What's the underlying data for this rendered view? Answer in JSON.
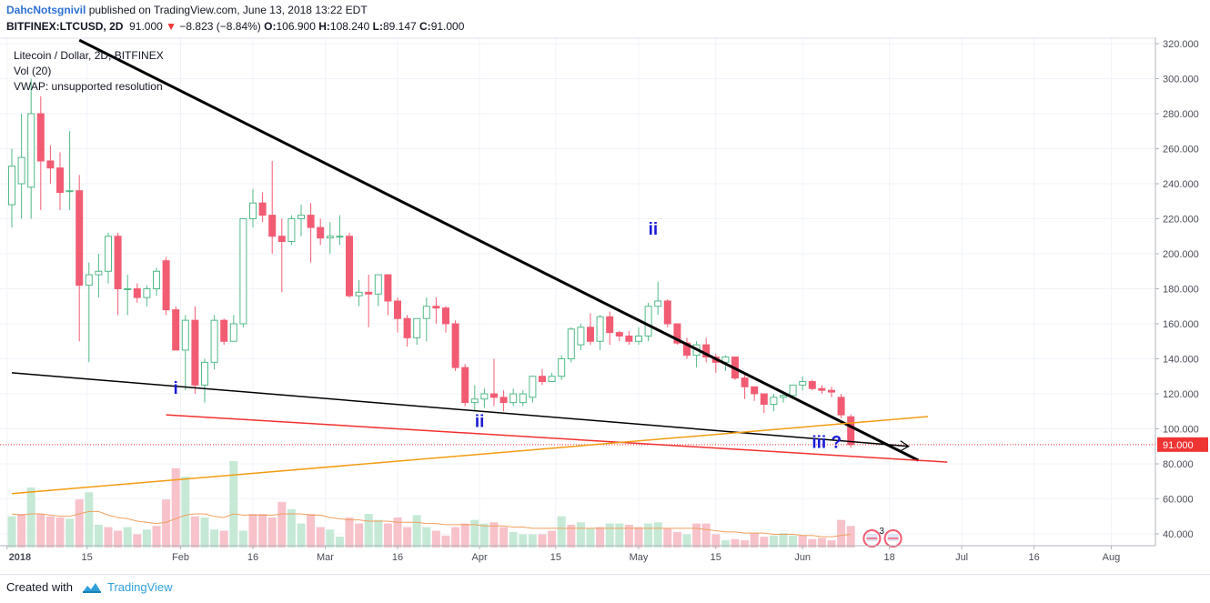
{
  "header": {
    "author": "DahcNotsgnivil",
    "published_text": " published on TradingView.com, June 13, 2018 13:22 EDT",
    "symbol": "BITFINEX:LTCUSD, 2D",
    "last": "91.000",
    "change": "−8.823 (−8.84%)",
    "open_label": "O:",
    "open": "106.900",
    "high_label": "H:",
    "high": "108.240",
    "low_label": "L:",
    "low": "89.147",
    "close_label": "C:",
    "close": "91.000"
  },
  "legend": {
    "title": "Litecoin / Dollar, 2D, BITFINEX",
    "vol": "Vol (20)",
    "vwap": "VWAP: unsupported resolution"
  },
  "footer": {
    "created_with": "Created with",
    "brand": "TradingView"
  },
  "colors": {
    "up": "#9fdfc5",
    "up_border": "#53b987",
    "down": "#f25c73",
    "vol_up": "#c6e9d6",
    "vol_down": "#f7c2ca",
    "vol_ma": "#f0a060",
    "wave_label": "#1a1ad6",
    "last_price_bg": "#ef3434"
  },
  "chart_data": {
    "type": "candlestick",
    "symbol": "BITFINEX:LTCUSD",
    "interval": "2D",
    "y_axis_ticks": [
      "320.000",
      "300.000",
      "280.000",
      "260.000",
      "240.000",
      "220.000",
      "200.000",
      "180.000",
      "160.000",
      "140.000",
      "120.000",
      "100.000",
      "80.000",
      "60.000",
      "40.000"
    ],
    "x_axis_ticks": [
      "2018",
      "15",
      "Feb",
      "16",
      "Mar",
      "16",
      "Apr",
      "15",
      "May",
      "15",
      "Jun",
      "18",
      "Jul",
      "16",
      "Aug"
    ],
    "last_price_label": "91.000",
    "wave_labels": [
      {
        "text": "i",
        "price": 120
      },
      {
        "text": "ii",
        "price": 101
      },
      {
        "text": "ii",
        "price": 211
      },
      {
        "text": "iii ?",
        "price": 89
      }
    ],
    "candles": [
      {
        "o": 228,
        "h": 260,
        "l": 215,
        "c": 250
      },
      {
        "o": 240,
        "h": 280,
        "l": 220,
        "c": 255
      },
      {
        "o": 238,
        "h": 300,
        "l": 220,
        "c": 280
      },
      {
        "o": 280,
        "h": 290,
        "l": 225,
        "c": 253
      },
      {
        "o": 253,
        "h": 262,
        "l": 240,
        "c": 249
      },
      {
        "o": 249,
        "h": 258,
        "l": 225,
        "c": 235
      },
      {
        "o": 236,
        "h": 270,
        "l": 225,
        "c": 236
      },
      {
        "o": 236,
        "h": 245,
        "l": 150,
        "c": 182
      },
      {
        "o": 182,
        "h": 195,
        "l": 138,
        "c": 188
      },
      {
        "o": 188,
        "h": 200,
        "l": 175,
        "c": 190
      },
      {
        "o": 190,
        "h": 212,
        "l": 183,
        "c": 210
      },
      {
        "o": 210,
        "h": 212,
        "l": 165,
        "c": 180
      },
      {
        "o": 180,
        "h": 188,
        "l": 165,
        "c": 180
      },
      {
        "o": 180,
        "h": 183,
        "l": 172,
        "c": 175
      },
      {
        "o": 175,
        "h": 182,
        "l": 170,
        "c": 180
      },
      {
        "o": 180,
        "h": 192,
        "l": 176,
        "c": 190
      },
      {
        "o": 196,
        "h": 198,
        "l": 165,
        "c": 168
      },
      {
        "o": 168,
        "h": 170,
        "l": 145,
        "c": 145
      },
      {
        "o": 145,
        "h": 165,
        "l": 122,
        "c": 162
      },
      {
        "o": 162,
        "h": 170,
        "l": 120,
        "c": 125
      },
      {
        "o": 125,
        "h": 140,
        "l": 115,
        "c": 138
      },
      {
        "o": 138,
        "h": 165,
        "l": 134,
        "c": 162
      },
      {
        "o": 162,
        "h": 163,
        "l": 148,
        "c": 150
      },
      {
        "o": 150,
        "h": 165,
        "l": 150,
        "c": 160
      },
      {
        "o": 160,
        "h": 218,
        "l": 158,
        "c": 220
      },
      {
        "o": 220,
        "h": 237,
        "l": 215,
        "c": 229
      },
      {
        "o": 229,
        "h": 235,
        "l": 218,
        "c": 222
      },
      {
        "o": 222,
        "h": 253,
        "l": 200,
        "c": 210
      },
      {
        "o": 210,
        "h": 220,
        "l": 178,
        "c": 207
      },
      {
        "o": 207,
        "h": 222,
        "l": 205,
        "c": 220
      },
      {
        "o": 220,
        "h": 228,
        "l": 210,
        "c": 222
      },
      {
        "o": 222,
        "h": 229,
        "l": 195,
        "c": 215
      },
      {
        "o": 215,
        "h": 220,
        "l": 205,
        "c": 209
      },
      {
        "o": 209,
        "h": 218,
        "l": 200,
        "c": 210
      },
      {
        "o": 210,
        "h": 222,
        "l": 205,
        "c": 210
      },
      {
        "o": 210,
        "h": 212,
        "l": 175,
        "c": 176
      },
      {
        "o": 176,
        "h": 185,
        "l": 170,
        "c": 178
      },
      {
        "o": 178,
        "h": 188,
        "l": 158,
        "c": 177
      },
      {
        "o": 177,
        "h": 188,
        "l": 170,
        "c": 188
      },
      {
        "o": 188,
        "h": 188,
        "l": 165,
        "c": 173
      },
      {
        "o": 173,
        "h": 175,
        "l": 155,
        "c": 163
      },
      {
        "o": 163,
        "h": 165,
        "l": 147,
        "c": 152
      },
      {
        "o": 152,
        "h": 163,
        "l": 148,
        "c": 163
      },
      {
        "o": 163,
        "h": 175,
        "l": 150,
        "c": 170
      },
      {
        "o": 170,
        "h": 175,
        "l": 160,
        "c": 169
      },
      {
        "o": 169,
        "h": 170,
        "l": 155,
        "c": 160
      },
      {
        "o": 160,
        "h": 162,
        "l": 133,
        "c": 135
      },
      {
        "o": 135,
        "h": 137,
        "l": 113,
        "c": 115
      },
      {
        "o": 115,
        "h": 125,
        "l": 110,
        "c": 117
      },
      {
        "o": 117,
        "h": 123,
        "l": 112,
        "c": 120
      },
      {
        "o": 120,
        "h": 140,
        "l": 113,
        "c": 118
      },
      {
        "o": 118,
        "h": 122,
        "l": 110,
        "c": 115
      },
      {
        "o": 115,
        "h": 123,
        "l": 113,
        "c": 120
      },
      {
        "o": 115,
        "h": 122,
        "l": 113,
        "c": 120
      },
      {
        "o": 118,
        "h": 130,
        "l": 115,
        "c": 130
      },
      {
        "o": 130,
        "h": 134,
        "l": 125,
        "c": 127
      },
      {
        "o": 127,
        "h": 132,
        "l": 127,
        "c": 130
      },
      {
        "o": 130,
        "h": 142,
        "l": 128,
        "c": 140
      },
      {
        "o": 140,
        "h": 158,
        "l": 138,
        "c": 157
      },
      {
        "o": 148,
        "h": 160,
        "l": 145,
        "c": 158
      },
      {
        "o": 158,
        "h": 166,
        "l": 148,
        "c": 150
      },
      {
        "o": 150,
        "h": 165,
        "l": 145,
        "c": 164
      },
      {
        "o": 164,
        "h": 167,
        "l": 148,
        "c": 155
      },
      {
        "o": 155,
        "h": 156,
        "l": 150,
        "c": 153
      },
      {
        "o": 153,
        "h": 156,
        "l": 148,
        "c": 150
      },
      {
        "o": 150,
        "h": 158,
        "l": 148,
        "c": 153
      },
      {
        "o": 153,
        "h": 172,
        "l": 150,
        "c": 170
      },
      {
        "o": 170,
        "h": 184,
        "l": 165,
        "c": 173
      },
      {
        "o": 173,
        "h": 174,
        "l": 158,
        "c": 160
      },
      {
        "o": 160,
        "h": 160,
        "l": 148,
        "c": 149
      },
      {
        "o": 149,
        "h": 152,
        "l": 140,
        "c": 142
      },
      {
        "o": 142,
        "h": 150,
        "l": 135,
        "c": 148
      },
      {
        "o": 148,
        "h": 152,
        "l": 138,
        "c": 141
      },
      {
        "o": 141,
        "h": 143,
        "l": 132,
        "c": 138
      },
      {
        "o": 138,
        "h": 142,
        "l": 133,
        "c": 141
      },
      {
        "o": 141,
        "h": 141,
        "l": 128,
        "c": 129
      },
      {
        "o": 129,
        "h": 132,
        "l": 117,
        "c": 124
      },
      {
        "o": 124,
        "h": 124,
        "l": 116,
        "c": 120
      },
      {
        "o": 120,
        "h": 120,
        "l": 109,
        "c": 114
      },
      {
        "o": 114,
        "h": 120,
        "l": 110,
        "c": 118
      },
      {
        "o": 118,
        "h": 120,
        "l": 115,
        "c": 119
      },
      {
        "o": 119,
        "h": 125,
        "l": 117,
        "c": 125
      },
      {
        "o": 125,
        "h": 130,
        "l": 122,
        "c": 127
      },
      {
        "o": 127,
        "h": 128,
        "l": 122,
        "c": 123
      },
      {
        "o": 123,
        "h": 125,
        "l": 120,
        "c": 122
      },
      {
        "o": 122,
        "h": 124,
        "l": 118,
        "c": 121
      },
      {
        "o": 118,
        "h": 120,
        "l": 106,
        "c": 108
      },
      {
        "o": 106.9,
        "h": 108.24,
        "l": 89.147,
        "c": 91
      }
    ],
    "volume_bars": [
      {
        "v": 56,
        "up": true
      },
      {
        "v": 58,
        "up": false
      },
      {
        "v": 80,
        "up": true
      },
      {
        "v": 58,
        "up": false
      },
      {
        "v": 56,
        "up": false
      },
      {
        "v": 55,
        "up": false
      },
      {
        "v": 54,
        "up": true
      },
      {
        "v": 70,
        "up": false
      },
      {
        "v": 76,
        "up": true
      },
      {
        "v": 49,
        "up": true
      },
      {
        "v": 47,
        "up": false
      },
      {
        "v": 44,
        "up": false
      },
      {
        "v": 47,
        "up": true
      },
      {
        "v": 41,
        "up": false
      },
      {
        "v": 45,
        "up": true
      },
      {
        "v": 48,
        "up": false
      },
      {
        "v": 70,
        "up": false
      },
      {
        "v": 96,
        "up": false
      },
      {
        "v": 89,
        "up": true
      },
      {
        "v": 56,
        "up": false
      },
      {
        "v": 55,
        "up": true
      },
      {
        "v": 45,
        "up": true
      },
      {
        "v": 44,
        "up": false
      },
      {
        "v": 102,
        "up": true
      },
      {
        "v": 44,
        "up": true
      },
      {
        "v": 58,
        "up": false
      },
      {
        "v": 58,
        "up": false
      },
      {
        "v": 55,
        "up": false
      },
      {
        "v": 68,
        "up": false
      },
      {
        "v": 62,
        "up": true
      },
      {
        "v": 50,
        "up": true
      },
      {
        "v": 58,
        "up": false
      },
      {
        "v": 47,
        "up": false
      },
      {
        "v": 45,
        "up": true
      },
      {
        "v": 39,
        "up": true
      },
      {
        "v": 55,
        "up": false
      },
      {
        "v": 50,
        "up": false
      },
      {
        "v": 58,
        "up": true
      },
      {
        "v": 53,
        "up": true
      },
      {
        "v": 50,
        "up": false
      },
      {
        "v": 55,
        "up": false
      },
      {
        "v": 47,
        "up": false
      },
      {
        "v": 57,
        "up": true
      },
      {
        "v": 47,
        "up": true
      },
      {
        "v": 44,
        "up": false
      },
      {
        "v": 40,
        "up": false
      },
      {
        "v": 47,
        "up": false
      },
      {
        "v": 50,
        "up": false
      },
      {
        "v": 53,
        "up": true
      },
      {
        "v": 50,
        "up": true
      },
      {
        "v": 51,
        "up": false
      },
      {
        "v": 47,
        "up": false
      },
      {
        "v": 43,
        "up": true
      },
      {
        "v": 41,
        "up": true
      },
      {
        "v": 41,
        "up": true
      },
      {
        "v": 41,
        "up": false
      },
      {
        "v": 44,
        "up": false
      },
      {
        "v": 56,
        "up": true
      },
      {
        "v": 49,
        "up": false
      },
      {
        "v": 51,
        "up": true
      },
      {
        "v": 46,
        "up": true
      },
      {
        "v": 47,
        "up": false
      },
      {
        "v": 50,
        "up": true
      },
      {
        "v": 50,
        "up": true
      },
      {
        "v": 49,
        "up": false
      },
      {
        "v": 47,
        "up": false
      },
      {
        "v": 50,
        "up": true
      },
      {
        "v": 51,
        "up": true
      },
      {
        "v": 46,
        "up": false
      },
      {
        "v": 43,
        "up": false
      },
      {
        "v": 41,
        "up": true
      },
      {
        "v": 50,
        "up": false
      },
      {
        "v": 50,
        "up": false
      },
      {
        "v": 41,
        "up": false
      },
      {
        "v": 36,
        "up": true
      },
      {
        "v": 37,
        "up": false
      },
      {
        "v": 36,
        "up": false
      },
      {
        "v": 42,
        "up": false
      },
      {
        "v": 39,
        "up": false
      },
      {
        "v": 40,
        "up": true
      },
      {
        "v": 42,
        "up": true
      },
      {
        "v": 40,
        "up": true
      },
      {
        "v": 40,
        "up": false
      },
      {
        "v": 37,
        "up": false
      },
      {
        "v": 38,
        "up": false
      },
      {
        "v": 36,
        "up": false
      },
      {
        "v": 53,
        "up": false
      },
      {
        "v": 48,
        "up": false
      }
    ],
    "volume_ma": [
      58,
      57,
      58,
      58,
      57,
      56,
      56,
      58,
      60,
      60,
      57,
      55,
      54,
      52,
      51,
      50,
      51,
      54,
      57,
      58,
      58,
      56,
      55,
      58,
      57,
      57,
      57,
      57,
      58,
      58,
      58,
      57,
      57,
      55,
      54,
      53,
      53,
      52,
      52,
      52,
      51,
      51,
      51,
      50,
      50,
      49,
      49,
      49,
      49,
      48,
      48,
      48,
      47,
      47,
      46,
      46,
      46,
      46,
      46,
      46,
      46,
      46,
      46,
      46,
      46,
      46,
      46,
      46,
      46,
      46,
      46,
      46,
      45,
      44,
      43,
      43,
      42,
      42,
      42,
      41,
      41,
      41,
      40,
      40,
      39,
      39,
      40,
      41
    ],
    "trendlines": [
      {
        "name": "upper-resistance",
        "color": "#000000",
        "from": {
          "bar": 7,
          "price": 322
        },
        "to": {
          "bar": 94,
          "price": 82
        }
      },
      {
        "name": "lower-support",
        "color": "#000000",
        "from": {
          "bar": 0,
          "price": 132
        },
        "to": {
          "bar": 93,
          "price": 90
        }
      },
      {
        "name": "red-support",
        "color": "#f23030",
        "from": {
          "bar": 16,
          "price": 108
        },
        "to": {
          "bar": 97,
          "price": 81
        }
      },
      {
        "name": "orange-line",
        "color": "#f39c12",
        "from": {
          "bar": 0,
          "price": 63
        },
        "to": {
          "bar": 95,
          "price": 107
        }
      }
    ],
    "last_price_line": 91
  }
}
